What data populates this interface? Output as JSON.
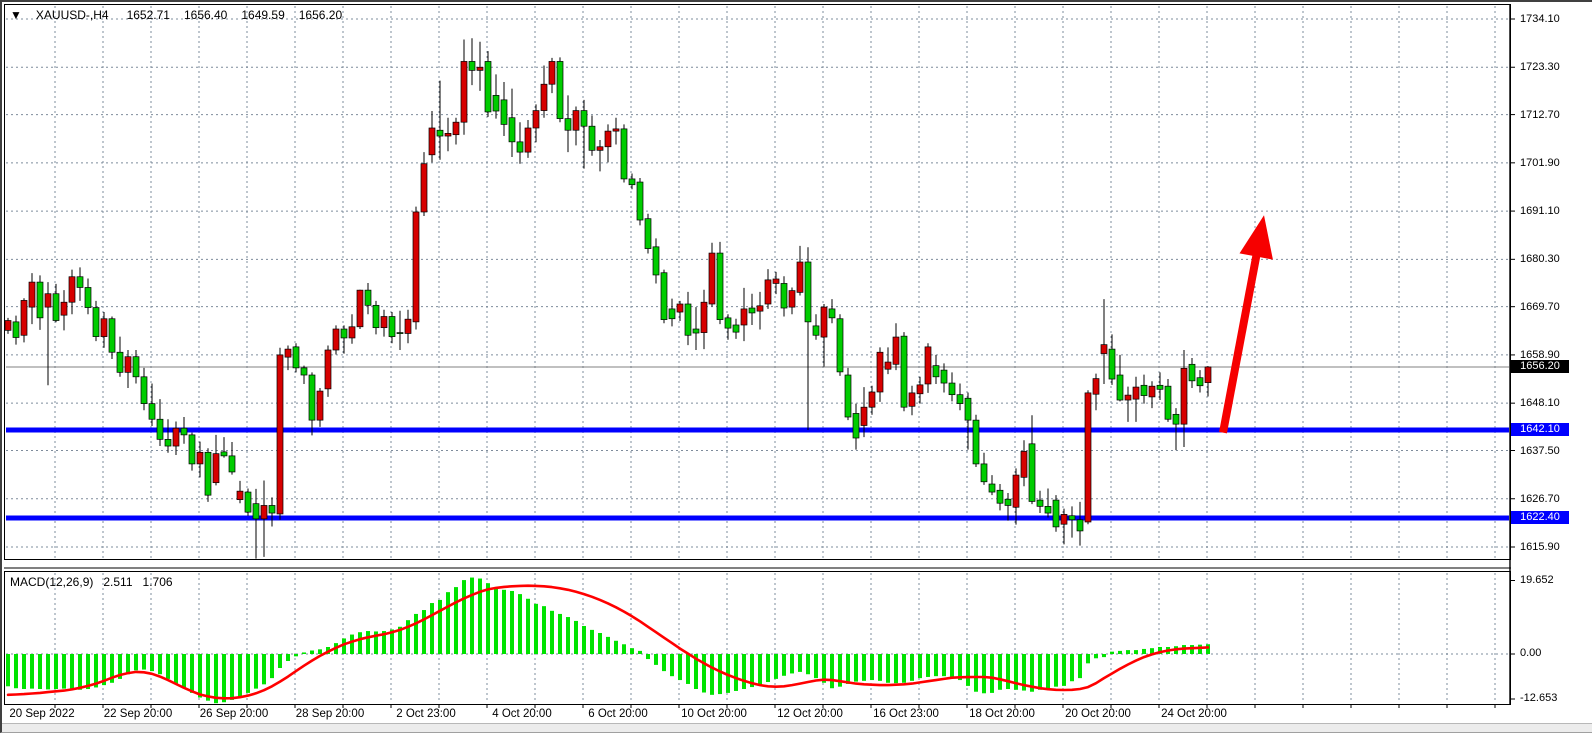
{
  "title_bar": {
    "dropdown_icon": "▼",
    "symbol": "XAUUSD-,H4",
    "open": "1652.71",
    "high": "1656.40",
    "low": "1649.59",
    "close": "1656.20"
  },
  "macd_label": {
    "name": "MACD(12,26,9)",
    "main": "2.511",
    "signal": "1.706"
  },
  "badges": {
    "current": "1656.20",
    "support1": "1642.10",
    "support2": "1622.40"
  },
  "colors": {
    "bull_body": "#d60000",
    "bear_body": "#00cc00",
    "wick": "#000000",
    "grid": "#7e8c9c",
    "support_line": "#0000ff",
    "current_price_line": "#808080",
    "macd_bar": "#00e300",
    "macd_signal": "#ff0000",
    "arrow": "#f60000",
    "badge_current_bg": "#000000",
    "badge_support_bg": "#0000ff",
    "panel_border": "#000000",
    "text": "#000000"
  },
  "chart_data": {
    "type": "candlestick",
    "symbol": "XAUUSD-",
    "timeframe": "H4",
    "title_ohlc": {
      "open": 1652.71,
      "high": 1656.4,
      "low": 1649.59,
      "close": 1656.2
    },
    "price_ticks": [
      1734.1,
      1723.3,
      1712.7,
      1701.9,
      1691.1,
      1680.3,
      1669.7,
      1658.9,
      1648.1,
      1637.5,
      1626.7,
      1615.9
    ],
    "ylim": [
      1613.0,
      1736.5
    ],
    "time_labels": [
      "20 Sep 2022",
      "22 Sep 20:00",
      "26 Sep 20:00",
      "28 Sep 20:00",
      "2 Oct 23:00",
      "4 Oct 20:00",
      "6 Oct 20:00",
      "10 Oct 20:00",
      "12 Oct 20:00",
      "16 Oct 23:00",
      "18 Oct 20:00",
      "20 Oct 20:00",
      "24 Oct 20:00"
    ],
    "grid": "dashed, vertical line per day (6 H4 bars), horizontal per price tick",
    "support_lines": [
      {
        "price": 1642.1,
        "color": "#0000ff"
      },
      {
        "price": 1622.4,
        "color": "#0000ff"
      }
    ],
    "current_price_line": 1656.2,
    "color_convention": "bullish bodies drawn red, bearish bodies drawn green, black wicks",
    "ohlc_order": "open,high,low,close",
    "candles": [
      [
        1664.4,
        1667.2,
        1663.6,
        1666.6
      ],
      [
        1666.3,
        1667.7,
        1661.2,
        1662.8
      ],
      [
        1663.3,
        1671.6,
        1661.7,
        1671.1
      ],
      [
        1669.6,
        1677.2,
        1665.8,
        1675.2
      ],
      [
        1675.2,
        1676.7,
        1664.5,
        1667.2
      ],
      [
        1669.6,
        1675.2,
        1652.1,
        1672.6
      ],
      [
        1672.6,
        1674.8,
        1666.2,
        1666.6
      ],
      [
        1667.8,
        1673.4,
        1664.4,
        1670.7
      ],
      [
        1670.7,
        1678.0,
        1668.0,
        1676.4
      ],
      [
        1676.4,
        1678.5,
        1671.0,
        1674.0
      ],
      [
        1674.0,
        1676.0,
        1668.0,
        1669.5
      ],
      [
        1669.5,
        1671.0,
        1662.0,
        1663.0
      ],
      [
        1663.0,
        1668.5,
        1660.5,
        1667.0
      ],
      [
        1667.0,
        1667.5,
        1658.0,
        1659.5
      ],
      [
        1659.5,
        1663.0,
        1654.0,
        1655.0
      ],
      [
        1655.0,
        1660.0,
        1651.5,
        1658.5
      ],
      [
        1658.5,
        1660.0,
        1652.5,
        1654.0
      ],
      [
        1654.0,
        1656.0,
        1646.5,
        1648.0
      ],
      [
        1648.0,
        1652.5,
        1643.0,
        1644.5
      ],
      [
        1644.5,
        1649.0,
        1638.5,
        1640.0
      ],
      [
        1640.0,
        1644.5,
        1637.0,
        1638.5
      ],
      [
        1638.5,
        1644.0,
        1636.5,
        1642.5
      ],
      [
        1642.5,
        1645.0,
        1639.0,
        1641.0
      ],
      [
        1641.0,
        1641.5,
        1633.0,
        1634.5
      ],
      [
        1634.5,
        1639.5,
        1631.5,
        1637.1
      ],
      [
        1637.1,
        1638.0,
        1626.0,
        1627.5
      ],
      [
        1630.3,
        1641.0,
        1629.7,
        1636.8
      ],
      [
        1637.2,
        1640.5,
        1635.9,
        1636.3
      ],
      [
        1636.3,
        1639.4,
        1632.1,
        1632.7
      ],
      [
        1626.5,
        1630.7,
        1625.7,
        1628.4
      ],
      [
        1628.2,
        1629.0,
        1622.9,
        1623.7
      ],
      [
        1625.6,
        1628.9,
        1613.3,
        1622.2
      ],
      [
        1622.2,
        1630.8,
        1613.7,
        1625.2
      ],
      [
        1625.2,
        1627.0,
        1620.5,
        1623.5
      ],
      [
        1623.3,
        1660.5,
        1622.0,
        1658.9
      ],
      [
        1658.4,
        1661.0,
        1655.5,
        1660.2
      ],
      [
        1660.7,
        1661.5,
        1655.0,
        1656.0
      ],
      [
        1656.0,
        1656.5,
        1652.4,
        1654.4
      ],
      [
        1654.4,
        1655.0,
        1640.9,
        1644.3
      ],
      [
        1644.3,
        1651.5,
        1642.8,
        1650.8
      ],
      [
        1651.3,
        1661.0,
        1649.5,
        1660.0
      ],
      [
        1660.0,
        1665.5,
        1659.0,
        1664.7
      ],
      [
        1664.7,
        1665.5,
        1659.2,
        1662.7
      ],
      [
        1662.7,
        1668.0,
        1661.4,
        1665.2
      ],
      [
        1665.2,
        1673.5,
        1664.7,
        1673.4
      ],
      [
        1673.4,
        1675.0,
        1668.0,
        1670.0
      ],
      [
        1670.0,
        1671.0,
        1663.5,
        1665.0
      ],
      [
        1665.0,
        1669.0,
        1663.0,
        1667.5
      ],
      [
        1667.5,
        1668.5,
        1661.5,
        1663.0
      ],
      [
        1663.9,
        1668.8,
        1660.0,
        1663.7
      ],
      [
        1663.7,
        1669.0,
        1661.5,
        1666.9
      ],
      [
        1666.3,
        1692.1,
        1664.6,
        1690.9
      ],
      [
        1690.9,
        1704.3,
        1690.0,
        1701.7
      ],
      [
        1703.7,
        1713.5,
        1702.0,
        1709.7
      ],
      [
        1709.2,
        1720.3,
        1702.6,
        1707.9
      ],
      [
        1707.9,
        1712.0,
        1704.5,
        1708.5
      ],
      [
        1708.2,
        1712.0,
        1706.0,
        1711.0
      ],
      [
        1711.0,
        1729.5,
        1708.2,
        1724.6
      ],
      [
        1724.6,
        1729.8,
        1719.3,
        1722.6
      ],
      [
        1722.6,
        1729.0,
        1718.0,
        1723.3
      ],
      [
        1724.6,
        1726.9,
        1712.2,
        1713.3
      ],
      [
        1717.0,
        1721.7,
        1711.8,
        1713.5
      ],
      [
        1716.0,
        1720.0,
        1707.9,
        1710.5
      ],
      [
        1712.0,
        1718.5,
        1703.2,
        1706.6
      ],
      [
        1706.6,
        1711.0,
        1701.7,
        1704.3
      ],
      [
        1704.3,
        1711.5,
        1703.0,
        1709.7
      ],
      [
        1709.7,
        1715.0,
        1706.5,
        1713.6
      ],
      [
        1713.6,
        1723.7,
        1712.0,
        1719.5
      ],
      [
        1719.5,
        1725.4,
        1717.5,
        1724.6
      ],
      [
        1724.6,
        1725.5,
        1711.0,
        1711.8
      ],
      [
        1711.8,
        1717.0,
        1704.3,
        1709.2
      ],
      [
        1709.2,
        1714.5,
        1705.8,
        1713.6
      ],
      [
        1713.6,
        1716.0,
        1700.6,
        1710.1
      ],
      [
        1710.1,
        1712.5,
        1703.5,
        1704.7
      ],
      [
        1704.7,
        1707.0,
        1700.0,
        1705.5
      ],
      [
        1705.5,
        1710.5,
        1702.0,
        1709.0
      ],
      [
        1709.0,
        1712.0,
        1706.0,
        1709.5
      ],
      [
        1709.5,
        1710.5,
        1697.5,
        1698.3
      ],
      [
        1698.3,
        1699.5,
        1696.0,
        1697.0
      ],
      [
        1697.6,
        1698.5,
        1687.9,
        1689.1
      ],
      [
        1689.4,
        1690.5,
        1681.6,
        1682.7
      ],
      [
        1683.1,
        1685.0,
        1674.9,
        1676.8
      ],
      [
        1677.3,
        1678.0,
        1666.0,
        1666.8
      ],
      [
        1669.2,
        1671.5,
        1665.3,
        1667.0
      ],
      [
        1668.5,
        1671.0,
        1666.5,
        1670.3
      ],
      [
        1670.3,
        1673.0,
        1661.1,
        1663.3
      ],
      [
        1664.7,
        1669.6,
        1660.0,
        1663.8
      ],
      [
        1663.9,
        1673.5,
        1660.2,
        1670.7
      ],
      [
        1670.3,
        1684.0,
        1669.7,
        1681.7
      ],
      [
        1681.7,
        1684.2,
        1665.8,
        1666.8
      ],
      [
        1667.2,
        1668.0,
        1662.3,
        1664.9
      ],
      [
        1665.6,
        1667.0,
        1662.5,
        1664.0
      ],
      [
        1665.6,
        1673.9,
        1662.0,
        1669.2
      ],
      [
        1669.4,
        1672.6,
        1665.6,
        1668.3
      ],
      [
        1668.7,
        1673.0,
        1664.6,
        1669.9
      ],
      [
        1670.3,
        1678.1,
        1669.2,
        1675.7
      ],
      [
        1674.9,
        1677.5,
        1672.5,
        1675.9
      ],
      [
        1674.9,
        1676.5,
        1667.5,
        1669.4
      ],
      [
        1669.6,
        1674.0,
        1668.0,
        1673.3
      ],
      [
        1672.9,
        1683.3,
        1672.2,
        1679.7
      ],
      [
        1679.7,
        1683.0,
        1642.1,
        1666.3
      ],
      [
        1665.4,
        1668.0,
        1662.3,
        1663.3
      ],
      [
        1662.9,
        1670.3,
        1656.3,
        1669.6
      ],
      [
        1669.2,
        1671.4,
        1666.0,
        1667.2
      ],
      [
        1667.0,
        1668.0,
        1654.2,
        1655.1
      ],
      [
        1654.4,
        1656.0,
        1644.3,
        1645.0
      ],
      [
        1645.8,
        1648.0,
        1637.7,
        1640.3
      ],
      [
        1643.1,
        1651.7,
        1640.5,
        1647.2
      ],
      [
        1647.2,
        1652.0,
        1645.5,
        1650.6
      ],
      [
        1650.6,
        1660.6,
        1648.4,
        1659.5
      ],
      [
        1655.7,
        1660.6,
        1654.6,
        1657.3
      ],
      [
        1656.8,
        1666.0,
        1655.5,
        1662.9
      ],
      [
        1663.1,
        1664.0,
        1646.3,
        1647.2
      ],
      [
        1647.4,
        1652.0,
        1645.4,
        1650.4
      ],
      [
        1650.2,
        1654.0,
        1648.0,
        1652.2
      ],
      [
        1652.4,
        1661.5,
        1650.4,
        1660.7
      ],
      [
        1656.5,
        1658.9,
        1652.4,
        1654.0
      ],
      [
        1655.5,
        1657.0,
        1650.5,
        1652.6
      ],
      [
        1652.6,
        1655.0,
        1648.5,
        1650.0
      ],
      [
        1650.0,
        1652.5,
        1646.5,
        1648.0
      ],
      [
        1649.2,
        1650.5,
        1637.7,
        1644.3
      ],
      [
        1644.3,
        1645.5,
        1633.8,
        1634.5
      ],
      [
        1634.5,
        1637.0,
        1629.8,
        1630.5
      ],
      [
        1630.0,
        1632.0,
        1627.5,
        1628.2
      ],
      [
        1628.6,
        1630.0,
        1624.1,
        1625.7
      ],
      [
        1626.6,
        1628.0,
        1621.8,
        1625.2
      ],
      [
        1624.8,
        1633.5,
        1620.9,
        1632.0
      ],
      [
        1631.5,
        1639.8,
        1629.5,
        1637.3
      ],
      [
        1639.0,
        1645.4,
        1625.5,
        1626.1
      ],
      [
        1626.4,
        1628.5,
        1623.5,
        1625.0
      ],
      [
        1625.0,
        1629.0,
        1622.5,
        1623.5
      ],
      [
        1626.4,
        1627.5,
        1619.3,
        1620.4
      ],
      [
        1621.0,
        1624.5,
        1616.5,
        1623.2
      ],
      [
        1622.9,
        1625.0,
        1618.0,
        1622.0
      ],
      [
        1622.0,
        1626.0,
        1616.2,
        1619.5
      ],
      [
        1621.5,
        1651.0,
        1621.0,
        1650.4
      ],
      [
        1650.1,
        1654.7,
        1646.5,
        1653.6
      ],
      [
        1659.2,
        1671.4,
        1652.4,
        1661.2
      ],
      [
        1660.2,
        1663.5,
        1652.2,
        1653.5
      ],
      [
        1654.4,
        1658.9,
        1648.5,
        1648.8
      ],
      [
        1648.8,
        1651.8,
        1643.9,
        1649.9
      ],
      [
        1649.0,
        1654.0,
        1643.9,
        1651.7
      ],
      [
        1652.1,
        1654.5,
        1648.0,
        1649.8
      ],
      [
        1649.5,
        1653.0,
        1647.0,
        1651.9
      ],
      [
        1652.1,
        1655.0,
        1648.8,
        1651.2
      ],
      [
        1651.9,
        1653.5,
        1643.9,
        1644.5
      ],
      [
        1645.6,
        1647.0,
        1637.6,
        1643.4
      ],
      [
        1643.4,
        1660.0,
        1638.3,
        1655.9
      ],
      [
        1656.8,
        1658.2,
        1651.5,
        1653.1
      ],
      [
        1653.8,
        1655.5,
        1650.5,
        1652.0
      ],
      [
        1652.7,
        1656.4,
        1649.6,
        1656.2
      ]
    ],
    "macd": {
      "params": [
        12,
        26,
        9
      ],
      "current_macd": 2.511,
      "current_signal": 1.706,
      "scale_max": 19.652,
      "scale_zero": 0.0,
      "scale_min": -12.653,
      "histogram": [
        -8.3,
        -8.8,
        -9.0,
        -8.9,
        -9.0,
        -9.1,
        -9.0,
        -8.9,
        -9.0,
        -9.2,
        -9.0,
        -8.6,
        -8.0,
        -7.4,
        -6.4,
        -5.2,
        -4.2,
        -4.0,
        -4.4,
        -5.2,
        -6.4,
        -7.6,
        -8.8,
        -10.0,
        -11.2,
        -12.0,
        -12.65,
        -12.4,
        -11.8,
        -11.0,
        -10.0,
        -8.9,
        -7.8,
        -6.2,
        -3.6,
        -1.8,
        -0.6,
        0.4,
        0.9,
        1.2,
        1.8,
        2.8,
        4.0,
        5.0,
        5.6,
        5.9,
        5.8,
        5.9,
        6.3,
        7.0,
        8.7,
        10.3,
        11.3,
        13.1,
        13.9,
        15.9,
        17.2,
        19.0,
        19.652,
        19.4,
        18.2,
        17.0,
        16.5,
        16.2,
        15.4,
        14.2,
        12.9,
        12.3,
        11.1,
        10.3,
        9.5,
        8.5,
        7.2,
        6.2,
        5.4,
        4.4,
        3.4,
        2.5,
        1.5,
        0.8,
        -1.3,
        -2.8,
        -4.4,
        -5.7,
        -6.7,
        -7.7,
        -9.0,
        -9.9,
        -10.5,
        -10.3,
        -10.0,
        -9.5,
        -9.0,
        -8.5,
        -8.0,
        -7.2,
        -6.4,
        -5.6,
        -5.0,
        -4.6,
        -5.2,
        -6.2,
        -7.4,
        -8.8,
        -8.4,
        -7.7,
        -7.1,
        -6.9,
        -6.7,
        -6.9,
        -7.4,
        -7.5,
        -7.4,
        -6.9,
        -6.2,
        -5.9,
        -5.7,
        -5.7,
        -5.9,
        -6.7,
        -8.2,
        -9.7,
        -10.1,
        -10.0,
        -9.2,
        -9.0,
        -9.2,
        -9.4,
        -9.7,
        -9.2,
        -8.8,
        -8.4,
        -8.2,
        -7.0,
        -6.2,
        -2.4,
        -1.1,
        -0.8,
        0.6,
        0.8,
        1.0,
        1.0,
        1.3,
        1.5,
        1.8,
        1.8,
        2.0,
        2.3,
        2.3,
        2.4,
        2.511
      ],
      "signal": [
        -10.5,
        -10.4,
        -10.3,
        -10.15,
        -10.0,
        -9.8,
        -9.6,
        -9.4,
        -9.1,
        -8.7,
        -8.2,
        -7.6,
        -6.9,
        -6.1,
        -5.4,
        -4.9,
        -4.6,
        -4.7,
        -5.1,
        -5.8,
        -6.7,
        -7.7,
        -8.7,
        -9.6,
        -10.4,
        -10.9,
        -11.25,
        -11.4,
        -11.35,
        -11.1,
        -10.7,
        -10.1,
        -9.3,
        -8.3,
        -7.1,
        -5.8,
        -4.4,
        -3.0,
        -1.7,
        -0.5,
        0.6,
        1.6,
        2.5,
        3.2,
        3.8,
        4.3,
        4.7,
        5.1,
        5.6,
        6.2,
        7.0,
        7.9,
        8.9,
        10.0,
        11.1,
        12.2,
        13.3,
        14.3,
        15.2,
        16.0,
        16.6,
        17.0,
        17.25,
        17.4,
        17.5,
        17.55,
        17.5,
        17.4,
        17.2,
        16.9,
        16.5,
        16.0,
        15.4,
        14.7,
        13.9,
        13.0,
        12.0,
        10.9,
        9.7,
        8.4,
        7.0,
        5.6,
        4.2,
        2.8,
        1.4,
        0.1,
        -1.2,
        -2.4,
        -3.5,
        -4.5,
        -5.4,
        -6.2,
        -6.9,
        -7.5,
        -8.0,
        -8.3,
        -8.4,
        -8.3,
        -8.0,
        -7.6,
        -7.2,
        -6.8,
        -6.6,
        -6.7,
        -7.0,
        -7.3,
        -7.6,
        -7.8,
        -7.9,
        -8.0,
        -8.0,
        -7.9,
        -7.8,
        -7.6,
        -7.3,
        -7.0,
        -6.7,
        -6.4,
        -6.1,
        -6.0,
        -5.95,
        -5.9,
        -5.9,
        -6.1,
        -6.5,
        -7.0,
        -7.5,
        -8.0,
        -8.4,
        -8.8,
        -9.05,
        -9.2,
        -9.25,
        -9.2,
        -9.0,
        -8.5,
        -7.5,
        -6.2,
        -5.0,
        -3.8,
        -2.7,
        -1.7,
        -0.8,
        -0.1,
        0.5,
        0.9,
        1.2,
        1.4,
        1.5,
        1.6,
        1.706
      ]
    },
    "arrow_annotation": {
      "description": "thick red up-arrow drawn from the 1642.10 support line pointing up toward ~1690",
      "from_price": 1641.5,
      "to_price": 1689.5,
      "color": "#f60000"
    }
  }
}
